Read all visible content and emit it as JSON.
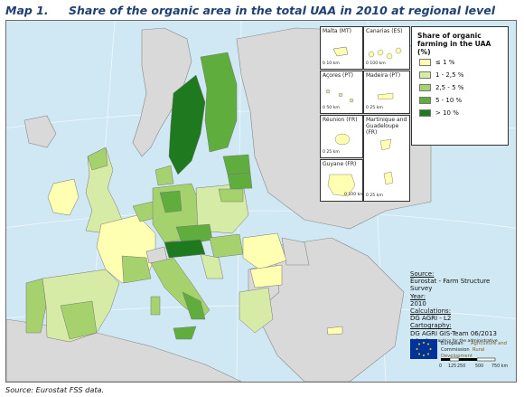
{
  "header": {
    "map_number": "Map 1.",
    "title": "Share of the organic area in the total UAA in 2010 at regional level"
  },
  "colors": {
    "sea": "#cfe8f3",
    "non_eu_land": "#d9d9d9",
    "class_1": "#ffffb2",
    "class_2": "#d6eca6",
    "class_3": "#a6d26e",
    "class_4": "#5fae3d",
    "class_5": "#1f7a1f"
  },
  "legend": {
    "title": "Share of organic farming in the UAA (%)",
    "items": [
      {
        "label": "≤ 1 %",
        "color": "#ffffb2"
      },
      {
        "label": "1 - 2,5 %",
        "color": "#d6eca6"
      },
      {
        "label": "2,5 - 5 %",
        "color": "#a6d26e"
      },
      {
        "label": "5 - 10 %",
        "color": "#5fae3d"
      },
      {
        "label": "> 10 %",
        "color": "#1f7a1f"
      }
    ]
  },
  "insets": [
    {
      "label": "Malta (MT)",
      "scale": "0     10 km"
    },
    {
      "label": "Canarias (ES)",
      "scale": "0   100 km"
    },
    {
      "label": "Açores (PT)",
      "scale": "0   50 km"
    },
    {
      "label": "Madeira (PT)",
      "scale": "0 25 km"
    },
    {
      "label": "Réunion (FR)",
      "scale": "0   25 km"
    },
    {
      "label": "Martinique and Guadeloupe (FR)",
      "scale": "0   25 km"
    },
    {
      "label": "Guyane (FR)",
      "scale": "0 100 km"
    }
  ],
  "metadata": {
    "source_label": "Source:",
    "source_value": "Eurostat - Farm Structure Survey",
    "year_label": "Year:",
    "year_value": "2010",
    "calc_label": "Calculations:",
    "calc_value": "DG AGRI - L2",
    "carto_label": "Cartography:",
    "carto_value": "DG AGRI GIS-Team 06/2013",
    "copyright": "© EuroGeographics for the administrative boundaries"
  },
  "logo": {
    "line1_a": "European",
    "line1_b": "Agriculture and",
    "line2_a": "Commission",
    "line2_b": "Rural Development"
  },
  "scale_bar": {
    "ticks": [
      "0",
      "125",
      "250",
      "500",
      "750 km"
    ]
  },
  "footer": {
    "source_note": "Source: Eurostat FSS data."
  }
}
